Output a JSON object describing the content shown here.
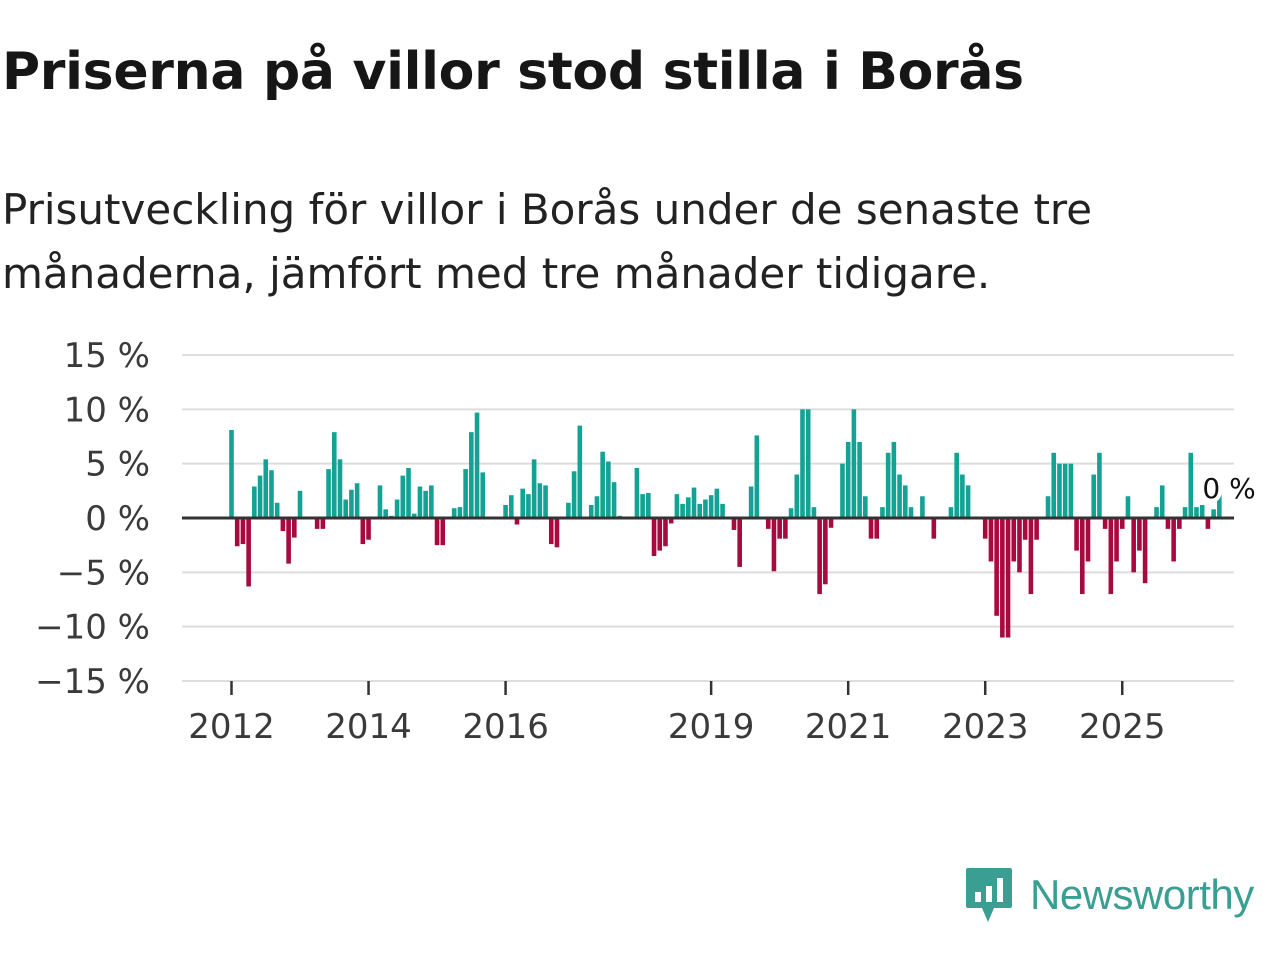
{
  "title": "Priserna på villor stod stilla i Borås",
  "subtitle": "Prisutveckling för villor i Borås under de senaste tre månaderna, jämfört med tre månader tidigare.",
  "brand": {
    "name": "Newsworthy",
    "color": "#3a9e92",
    "icon": "newsworthy-logo-icon"
  },
  "colors": {
    "positive": "#13a294",
    "negative": "#a80a3f",
    "grid": "#dddddd",
    "zero": "#333333"
  },
  "chart_data": {
    "type": "bar",
    "title": "Priserna på villor stod stilla i Borås",
    "xlabel": "",
    "ylabel": "",
    "unit": "%",
    "ylim": [
      -15,
      15
    ],
    "y_ticks": [
      15,
      10,
      5,
      0,
      -5,
      -10,
      -15
    ],
    "y_tick_labels": [
      "15 %",
      "10 %",
      "5 %",
      "0 %",
      "−5 %",
      "−10 %",
      "−15 %"
    ],
    "x_ticks": [
      {
        "label": "2012",
        "index": 0
      },
      {
        "label": "2014",
        "index": 24
      },
      {
        "label": "2016",
        "index": 48
      },
      {
        "label": "2019",
        "index": 84
      },
      {
        "label": "2021",
        "index": 108
      },
      {
        "label": "2023",
        "index": 132
      },
      {
        "label": "2025",
        "index": 156
      }
    ],
    "x_start": "2012-01",
    "frequency": "monthly",
    "last_label": "0 %",
    "values": [
      8.1,
      -2.6,
      -2.4,
      -6.3,
      2.9,
      3.9,
      5.4,
      4.4,
      1.4,
      -1.2,
      -4.2,
      -1.8,
      2.5,
      0,
      0,
      -1.0,
      -1.0,
      4.5,
      7.9,
      5.4,
      1.7,
      2.6,
      3.2,
      -2.4,
      -2.0,
      0,
      3.0,
      0.8,
      0.2,
      1.7,
      3.9,
      4.6,
      0.4,
      2.9,
      2.5,
      3.0,
      -2.5,
      -2.5,
      0,
      0.9,
      1.0,
      4.5,
      7.9,
      9.7,
      4.2,
      0,
      0,
      0,
      1.2,
      2.1,
      -0.6,
      2.7,
      2.2,
      5.4,
      3.2,
      3.0,
      -2.4,
      -2.7,
      0,
      1.4,
      4.3,
      8.5,
      0,
      1.2,
      2.0,
      6.1,
      5.2,
      3.3,
      0.2,
      0,
      0,
      4.6,
      2.2,
      2.3,
      -3.5,
      -3.0,
      -2.6,
      -0.5,
      2.2,
      1.3,
      1.9,
      2.8,
      1.3,
      1.7,
      2.1,
      2.7,
      1.3,
      0,
      -1.1,
      -4.5,
      0,
      2.9,
      7.6,
      0,
      -1.0,
      -4.9,
      -1.9,
      -1.9,
      0.9,
      4.0,
      10.0,
      10.0,
      1.0,
      -7.0,
      -6.1,
      -0.9,
      0,
      5.0,
      7.0,
      10.0,
      7.0,
      2.0,
      -1.9,
      -1.9,
      1.0,
      6.0,
      7.0,
      4.0,
      3.0,
      1.0,
      0,
      2.0,
      0,
      -1.9,
      0,
      0,
      1.0,
      6.0,
      4.0,
      3.0,
      0,
      0,
      -1.9,
      -4.0,
      -9.0,
      -11.0,
      -11.0,
      -4.0,
      -5.0,
      -2.0,
      -7.0,
      -2.0,
      0,
      2.0,
      6.0,
      5.0,
      5.0,
      5.0,
      -3.0,
      -7.0,
      -4.0,
      4.0,
      6.0,
      -1.0,
      -7.0,
      -4.0,
      -1.0,
      2.0,
      -5.0,
      -3.0,
      -6.0,
      0,
      1.0,
      3.0,
      -1.0,
      -4.0,
      -1.0,
      1.0,
      6.0,
      1.0,
      1.2,
      -1.0,
      0.8,
      2.5,
      0
    ]
  }
}
